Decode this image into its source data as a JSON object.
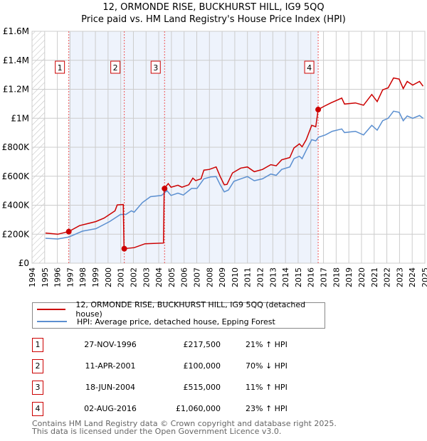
{
  "title": "12, ORMONDE RISE, BUCKHURST HILL, IG9 5QQ",
  "subtitle": "Price paid vs. HM Land Registry's House Price Index (HPI)",
  "legend": {
    "red": "12, ORMONDE RISE, BUCKHURST HILL, IG9 5QQ (detached house)",
    "blue": "HPI: Average price, detached house, Epping Forest"
  },
  "colors": {
    "red": "#cc0000",
    "blue": "#5b8fd0",
    "shade": "#eef3fc"
  },
  "sales": [
    {
      "n": "1",
      "date": "27-NOV-1996",
      "price": "£217,500",
      "hpi": "21% ↑ HPI",
      "year": 1996.9,
      "value": 217500
    },
    {
      "n": "2",
      "date": "11-APR-2001",
      "price": "£100,000",
      "hpi": "70% ↓ HPI",
      "year": 2001.28,
      "value": 100000
    },
    {
      "n": "3",
      "date": "18-JUN-2004",
      "price": "£515,000",
      "hpi": "11% ↑ HPI",
      "year": 2004.46,
      "value": 515000
    },
    {
      "n": "4",
      "date": "02-AUG-2016",
      "price": "£1,060,000",
      "hpi": "23% ↑ HPI",
      "year": 2016.58,
      "value": 1060000
    }
  ],
  "footer": [
    "Contains HM Land Registry data © Crown copyright and database right 2025.",
    "This data is licensed under the Open Government Licence v3.0."
  ],
  "chart_data": {
    "type": "line",
    "xlim": [
      1994,
      2025
    ],
    "ylim": [
      0,
      1600000
    ],
    "xticks": [
      "1994",
      "1995",
      "1996",
      "1997",
      "1998",
      "1999",
      "2000",
      "2001",
      "2002",
      "2003",
      "2004",
      "2005",
      "2006",
      "2007",
      "2008",
      "2009",
      "2010",
      "2011",
      "2012",
      "2013",
      "2014",
      "2015",
      "2016",
      "2017",
      "2018",
      "2019",
      "2020",
      "2021",
      "2022",
      "2023",
      "2024",
      "2025"
    ],
    "yticks": [
      {
        "v": 0,
        "l": "£0"
      },
      {
        "v": 200000,
        "l": "£200K"
      },
      {
        "v": 400000,
        "l": "£400K"
      },
      {
        "v": 600000,
        "l": "£600K"
      },
      {
        "v": 800000,
        "l": "£800K"
      },
      {
        "v": 1000000,
        "l": "£1M"
      },
      {
        "v": 1200000,
        "l": "£1.2M"
      },
      {
        "v": 1400000,
        "l": "£1.4M"
      },
      {
        "v": 1600000,
        "l": "£1.6M"
      }
    ],
    "series": [
      {
        "name": "12, ORMONDE RISE, BUCKHURST HILL, IG9 5QQ (detached house)",
        "points": [
          [
            1995.06,
            208000
          ],
          [
            1996.03,
            200000
          ],
          [
            1996.89,
            218000
          ],
          [
            1997.75,
            259000
          ],
          [
            1999.04,
            287000
          ],
          [
            1999.69,
            311000
          ],
          [
            2000.55,
            361000
          ],
          [
            2000.72,
            402000
          ],
          [
            2001.2,
            405000
          ],
          [
            2001.26,
            100000
          ],
          [
            2002.06,
            107000
          ],
          [
            2002.92,
            134000
          ],
          [
            2004.37,
            139000
          ],
          [
            2004.43,
            515000
          ],
          [
            2004.75,
            549000
          ],
          [
            2004.97,
            524000
          ],
          [
            2005.51,
            538000
          ],
          [
            2005.83,
            524000
          ],
          [
            2006.37,
            541000
          ],
          [
            2006.69,
            587000
          ],
          [
            2006.91,
            570000
          ],
          [
            2007.34,
            582000
          ],
          [
            2007.56,
            642000
          ],
          [
            2007.99,
            647000
          ],
          [
            2008.53,
            664000
          ],
          [
            2008.85,
            598000
          ],
          [
            2009.17,
            541000
          ],
          [
            2009.39,
            544000
          ],
          [
            2009.82,
            623000
          ],
          [
            2010.47,
            656000
          ],
          [
            2011.0,
            664000
          ],
          [
            2011.54,
            631000
          ],
          [
            2012.19,
            647000
          ],
          [
            2012.84,
            680000
          ],
          [
            2013.27,
            672000
          ],
          [
            2013.7,
            713000
          ],
          [
            2014.34,
            729000
          ],
          [
            2014.67,
            795000
          ],
          [
            2015.1,
            823000
          ],
          [
            2015.31,
            803000
          ],
          [
            2015.64,
            852000
          ],
          [
            2016.07,
            951000
          ],
          [
            2016.39,
            942000
          ],
          [
            2016.58,
            1060000
          ],
          [
            2017.04,
            1082000
          ],
          [
            2017.58,
            1106000
          ],
          [
            2018.44,
            1139000
          ],
          [
            2018.66,
            1098000
          ],
          [
            2019.52,
            1106000
          ],
          [
            2020.16,
            1090000
          ],
          [
            2020.81,
            1164000
          ],
          [
            2021.24,
            1115000
          ],
          [
            2021.67,
            1196000
          ],
          [
            2022.1,
            1210000
          ],
          [
            2022.53,
            1278000
          ],
          [
            2022.97,
            1270000
          ],
          [
            2023.29,
            1205000
          ],
          [
            2023.61,
            1254000
          ],
          [
            2024.04,
            1229000
          ],
          [
            2024.58,
            1254000
          ],
          [
            2024.86,
            1221000
          ]
        ]
      },
      {
        "name": "HPI: Average price, detached house, Epping Forest",
        "points": [
          [
            1995.06,
            172000
          ],
          [
            1996.03,
            167000
          ],
          [
            1996.89,
            180000
          ],
          [
            1997.97,
            221000
          ],
          [
            1999.04,
            238000
          ],
          [
            2000.12,
            287000
          ],
          [
            2000.98,
            336000
          ],
          [
            2001.41,
            336000
          ],
          [
            2001.84,
            361000
          ],
          [
            2002.06,
            352000
          ],
          [
            2002.71,
            418000
          ],
          [
            2003.35,
            459000
          ],
          [
            2004.22,
            467000
          ],
          [
            2004.65,
            500000
          ],
          [
            2004.97,
            467000
          ],
          [
            2005.51,
            483000
          ],
          [
            2005.94,
            470000
          ],
          [
            2006.59,
            516000
          ],
          [
            2007.02,
            516000
          ],
          [
            2007.56,
            582000
          ],
          [
            2008.09,
            595000
          ],
          [
            2008.53,
            598000
          ],
          [
            2008.85,
            541000
          ],
          [
            2009.17,
            492000
          ],
          [
            2009.5,
            505000
          ],
          [
            2009.93,
            565000
          ],
          [
            2010.47,
            582000
          ],
          [
            2011.0,
            598000
          ],
          [
            2011.54,
            569000
          ],
          [
            2012.19,
            582000
          ],
          [
            2012.84,
            615000
          ],
          [
            2013.27,
            606000
          ],
          [
            2013.7,
            647000
          ],
          [
            2014.34,
            664000
          ],
          [
            2014.67,
            721000
          ],
          [
            2015.1,
            738000
          ],
          [
            2015.31,
            721000
          ],
          [
            2015.64,
            779000
          ],
          [
            2016.07,
            852000
          ],
          [
            2016.39,
            844000
          ],
          [
            2016.61,
            869000
          ],
          [
            2017.15,
            885000
          ],
          [
            2017.69,
            910000
          ],
          [
            2018.44,
            926000
          ],
          [
            2018.66,
            901000
          ],
          [
            2019.52,
            910000
          ],
          [
            2020.16,
            885000
          ],
          [
            2020.81,
            951000
          ],
          [
            2021.24,
            918000
          ],
          [
            2021.67,
            983000
          ],
          [
            2022.1,
            1000000
          ],
          [
            2022.53,
            1049000
          ],
          [
            2022.97,
            1041000
          ],
          [
            2023.29,
            983000
          ],
          [
            2023.61,
            1016000
          ],
          [
            2024.04,
            1000000
          ],
          [
            2024.58,
            1019000
          ],
          [
            2024.86,
            1000000
          ]
        ]
      }
    ]
  }
}
